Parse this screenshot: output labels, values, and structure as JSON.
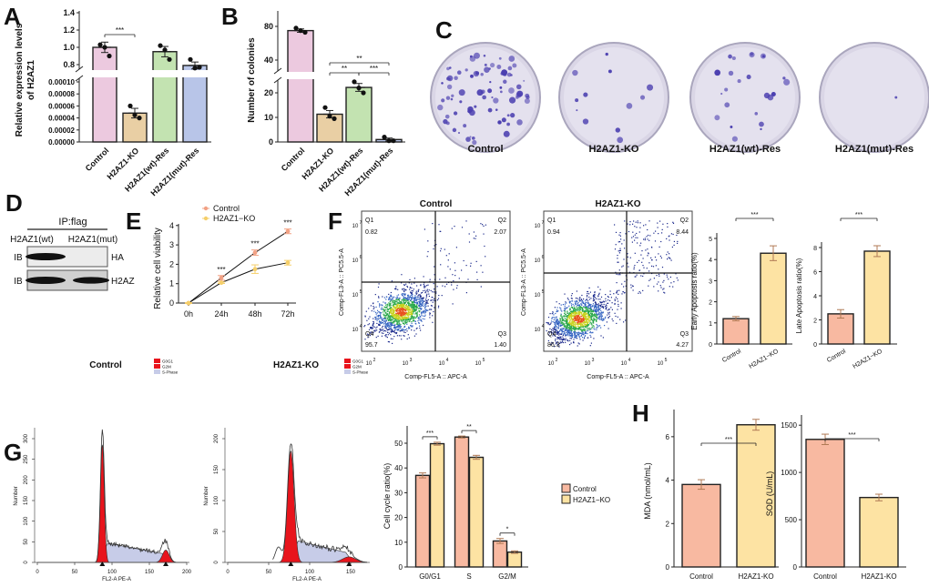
{
  "panels": [
    "A",
    "B",
    "C",
    "D",
    "E",
    "F",
    "G",
    "H"
  ],
  "colors": {
    "control_pink": "#ecc9df",
    "ko_tan": "#e9cfa4",
    "wt_green": "#c3e3b1",
    "mut_blue": "#b8c5e8",
    "salmon": "#f8b9a1",
    "yellow": "#fde3a3",
    "hist_red": "#e8141c",
    "colony": "#4b3fb0"
  },
  "chart_data": [
    {
      "id": "A",
      "type": "bar",
      "axis_break": true,
      "ylabel_lines": [
        "Relative expression levels",
        "of H2AZ1"
      ],
      "categories": [
        "Control",
        "H2AZ1-KO",
        "H2AZ1(wt)-Res",
        "H2AZ1(mut)-Res"
      ],
      "values": [
        1.0,
        4.8e-05,
        0.95,
        0.79
      ],
      "errors": [
        0.06,
        8e-06,
        0.06,
        0.04
      ],
      "points": [
        [
          1.03,
          0.9,
          1.0
        ],
        [
          6e-05,
          4e-05,
          4.5e-05
        ],
        [
          1.02,
          0.86,
          0.97
        ],
        [
          0.86,
          0.77,
          0.76
        ]
      ],
      "yticks_upper": [
        "0.8",
        "1.0",
        "1.2",
        "1.4"
      ],
      "yticks_lower": [
        "0.00000",
        "0.00002",
        "0.00004",
        "0.00006",
        "0.00008",
        "0.00010"
      ],
      "significance": [
        {
          "from": 0,
          "to": 1,
          "label": "***"
        }
      ]
    },
    {
      "id": "B",
      "type": "bar",
      "axis_break": true,
      "ylabel": "Number of colonies",
      "categories": [
        "Control",
        "H2AZ1-KO",
        "H2AZ1(wt)-Res",
        "H2AZ1(mut)-Res"
      ],
      "values": [
        75,
        11.3,
        22.2,
        1.0
      ],
      "errors": [
        2,
        1.5,
        1.6,
        0.6
      ],
      "points": [
        [
          78,
          73,
          75
        ],
        [
          14,
          9.5,
          10.5
        ],
        [
          24.5,
          20,
          22
        ],
        [
          2,
          0.5,
          0.5
        ]
      ],
      "yticks_upper": [
        "40",
        "80"
      ],
      "yticks_lower": [
        "0",
        "10",
        "20"
      ],
      "significance": [
        {
          "from": 1,
          "to": 3,
          "label": "**"
        },
        {
          "from": 1,
          "to": 2,
          "label": "**"
        },
        {
          "from": 2,
          "to": 3,
          "label": "***"
        }
      ]
    },
    {
      "id": "C",
      "type": "image",
      "plates": [
        {
          "label": "Control",
          "relative_colonies": 75
        },
        {
          "label": "H2AZ1-KO",
          "relative_colonies": 11
        },
        {
          "label": "H2AZ1(wt)-Res",
          "relative_colonies": 22
        },
        {
          "label": "H2AZ1(mut)-Res",
          "relative_colonies": 1
        }
      ]
    },
    {
      "id": "D",
      "type": "blot",
      "title": "IP:flag",
      "lanes": [
        "H2AZ1(wt)",
        "H2AZ1(mut)"
      ],
      "rows": [
        {
          "ib": "IB",
          "target": "HA",
          "bands": [
            1,
            0
          ]
        },
        {
          "ib": "IB",
          "target": "H2AZ",
          "bands": [
            1,
            0.9
          ]
        }
      ]
    },
    {
      "id": "E",
      "type": "line",
      "x": [
        "0h",
        "24h",
        "48h",
        "72h"
      ],
      "ylabel": "Relative cell viability",
      "yticks": [
        "0",
        "1",
        "2",
        "3",
        "4"
      ],
      "ylim": [
        0,
        4
      ],
      "series": [
        {
          "name": "Control",
          "values": [
            0,
            1.3,
            2.6,
            3.7
          ],
          "errors": [
            0.02,
            0.12,
            0.14,
            0.12
          ],
          "color": "#f2a184"
        },
        {
          "name": "H2AZ1−KO",
          "values": [
            0,
            1.05,
            1.75,
            2.08
          ],
          "errors": [
            0.02,
            0.04,
            0.22,
            0.12
          ],
          "color": "#f5cf6a"
        }
      ],
      "significance": [
        "",
        "***",
        "***",
        "***"
      ]
    },
    {
      "id": "F_flow",
      "type": "scatter",
      "xlabel": "Comp-FL5-A :: APC-A",
      "ylabel": "Comp-FL3-A :: PC5.5-A",
      "tick_base": "10",
      "xtick_exponents": [
        "2",
        "3",
        "4",
        "5"
      ],
      "ytick_exponents": [
        "4",
        "5",
        "6",
        "7"
      ],
      "plots": [
        {
          "title": "Control",
          "q1": "Q1",
          "q1_value": "0.82",
          "q2": "Q2",
          "q2_value": "2.07",
          "q3": "Q3",
          "q3_value": "1.40",
          "q4": "Q4",
          "q4_value": "95.7"
        },
        {
          "title": "H2AZ1-KO",
          "q1": "Q1",
          "q1_value": "0.94",
          "q2": "Q2",
          "q2_value": "8.44",
          "q3": "Q3",
          "q3_value": "4.27",
          "q4": "Q4",
          "q4_value": "86.3"
        }
      ]
    },
    {
      "id": "F_early",
      "type": "bar",
      "ylabel": "Early Apoptosis ratio(%)",
      "categories": [
        "Control",
        "H2AZ1−KO"
      ],
      "values": [
        1.2,
        4.3
      ],
      "errors": [
        0.1,
        0.35
      ],
      "yticks": [
        "0",
        "1",
        "2",
        "3",
        "4",
        "5"
      ],
      "ylim": [
        0,
        5
      ],
      "significance": "***"
    },
    {
      "id": "F_late",
      "type": "bar",
      "ylabel": "Late Apoptosis ratio(%)",
      "categories": [
        "Control",
        "H2AZ1−KO"
      ],
      "values": [
        2.5,
        7.7
      ],
      "errors": [
        0.35,
        0.45
      ],
      "yticks": [
        "0",
        "2",
        "4",
        "6",
        "8"
      ],
      "ylim": [
        0,
        8
      ],
      "significance": "***"
    },
    {
      "id": "G_hist",
      "type": "area",
      "xlabel": "FL2-A PE-A",
      "ylabel": "Number",
      "legend": [
        "G0G1",
        "G2M",
        "S-Phase"
      ],
      "plots": [
        {
          "title": "Control",
          "xticks": [
            "0",
            "50",
            "100",
            "150",
            "200"
          ],
          "yticks": [
            "0",
            "50",
            "100",
            "150",
            "200",
            "250",
            "300"
          ],
          "g1_peak": 87,
          "g2_peak": 172,
          "peak_height": 305
        },
        {
          "title": "H2AZ1-KO",
          "xticks": [
            "0",
            "50",
            "100",
            "150"
          ],
          "yticks": [
            "0",
            "50",
            "100",
            "150",
            "200"
          ],
          "g1_peak": 77,
          "g2_peak": 148,
          "peak_height": 200
        }
      ]
    },
    {
      "id": "G_bar",
      "type": "bar",
      "ylabel": "Cell cycle ratio(%)",
      "categories": [
        "G0/G1",
        "S",
        "G2/M"
      ],
      "series": [
        {
          "name": "Control",
          "values": [
            37,
            52.5,
            10.5
          ],
          "errors": [
            1.0,
            0.4,
            1.0
          ]
        },
        {
          "name": "H2AZ1−KO",
          "values": [
            49.8,
            44.3,
            6.0
          ],
          "errors": [
            0.6,
            0.8,
            0.5
          ]
        }
      ],
      "yticks": [
        "0",
        "10",
        "20",
        "30",
        "40",
        "50"
      ],
      "ylim": [
        0,
        55
      ],
      "significance": [
        "***",
        "**",
        "*"
      ]
    },
    {
      "id": "H_mda",
      "type": "bar",
      "ylabel": "MDA (nmol/mL)",
      "categories": [
        "Control",
        "H2AZ1-KO"
      ],
      "values": [
        3.8,
        6.55
      ],
      "errors": [
        0.22,
        0.25
      ],
      "yticks": [
        "0",
        "2",
        "4",
        "6"
      ],
      "ylim": [
        0,
        7
      ],
      "significance": "***"
    },
    {
      "id": "H_sod",
      "type": "bar",
      "ylabel": "SOD (U/mL)",
      "categories": [
        "Control",
        "H2AZ1-KO"
      ],
      "values": [
        1350,
        735
      ],
      "errors": [
        55,
        35
      ],
      "yticks": [
        "0",
        "500",
        "1000",
        "1500"
      ],
      "ylim": [
        0,
        1550
      ],
      "significance": "***"
    }
  ]
}
